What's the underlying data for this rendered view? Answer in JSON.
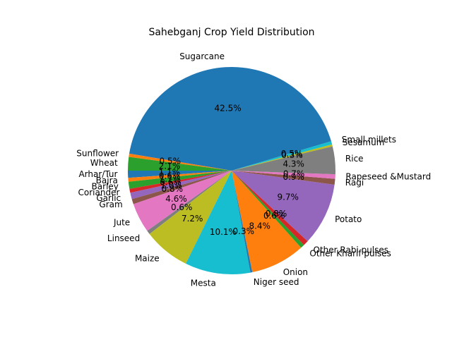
{
  "chart_data": {
    "type": "pie",
    "title": "Sahebganj Crop Yield Distribution",
    "start_angle_deg": 180,
    "direction": "counterclockwise",
    "slices": [
      {
        "label": "Arhar/Tur",
        "pct": "1.1%",
        "value": 1.1,
        "color": "#1f77b4"
      },
      {
        "label": "Bajra",
        "pct": "0.6%",
        "value": 0.6,
        "color": "#ff7f0e"
      },
      {
        "label": "Barley",
        "pct": "1.1%",
        "value": 1.1,
        "color": "#2ca02c"
      },
      {
        "label": "Coriander",
        "pct": "0.6%",
        "value": 0.6,
        "color": "#d62728"
      },
      {
        "label": "Garlic",
        "pct": "1.0%",
        "value": 1.0,
        "color": "#9467bd"
      },
      {
        "label": "Gram",
        "pct": "0.8%",
        "value": 0.8,
        "color": "#8c564b"
      },
      {
        "label": "Jute",
        "pct": "4.6%",
        "value": 4.6,
        "color": "#e377c2"
      },
      {
        "label": "Linseed",
        "pct": "0.6%",
        "value": 0.6,
        "color": "#7f7f7f"
      },
      {
        "label": "Maize",
        "pct": "7.2%",
        "value": 7.2,
        "color": "#bcbd22"
      },
      {
        "label": "Mesta",
        "pct": "10.1%",
        "value": 10.1,
        "color": "#17becf"
      },
      {
        "label": "Niger seed",
        "pct": "0.3%",
        "value": 0.3,
        "color": "#1f77b4"
      },
      {
        "label": "Onion",
        "pct": "8.4%",
        "value": 8.4,
        "color": "#ff7f0e"
      },
      {
        "label": "Other Kharif pulses",
        "pct": "0.6%",
        "value": 0.6,
        "color": "#2ca02c"
      },
      {
        "label": "Other Rabi pulses",
        "pct": "0.8%",
        "value": 0.8,
        "color": "#d62728"
      },
      {
        "label": "Potato",
        "pct": "9.7%",
        "value": 9.7,
        "color": "#9467bd"
      },
      {
        "label": "Ragi",
        "pct": "0.9%",
        "value": 0.9,
        "color": "#8c564b"
      },
      {
        "label": "Rapeseed &Mustard",
        "pct": "0.7%",
        "value": 0.7,
        "color": "#e377c2"
      },
      {
        "label": "Rice",
        "pct": "4.3%",
        "value": 4.3,
        "color": "#7f7f7f"
      },
      {
        "label": "Sesamum",
        "pct": "0.3%",
        "value": 0.3,
        "color": "#bcbd22"
      },
      {
        "label": "Small millets",
        "pct": "0.5%",
        "value": 0.5,
        "color": "#17becf"
      },
      {
        "label": "Sugarcane",
        "pct": "42.5%",
        "value": 42.5,
        "color": "#1f77b4"
      },
      {
        "label": "Sunflower",
        "pct": "0.5%",
        "value": 0.5,
        "color": "#ff7f0e"
      },
      {
        "label": "Wheat",
        "pct": "2.1%",
        "value": 2.1,
        "color": "#2ca02c"
      }
    ]
  }
}
